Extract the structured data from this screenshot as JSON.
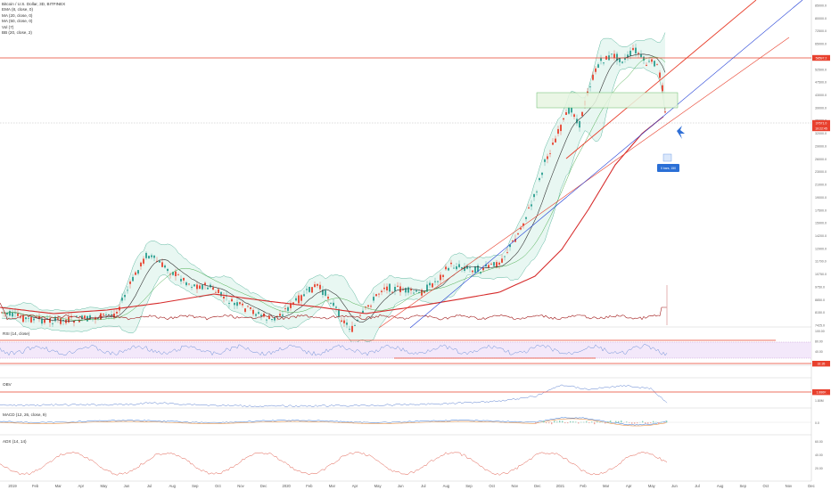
{
  "header": {
    "title": "Bitcoin / U.S. Dollar, 3D, BITFINEX",
    "indicators": [
      "EMA (8, close, 0)",
      "MA (20, close, 0)",
      "MA (50, close, 0)",
      "Vol (7)",
      "BB (20, close, 2)"
    ]
  },
  "chart_data": [
    {
      "type": "line",
      "name": "price",
      "yscale": "log",
      "ylim": [
        6800,
        90000
      ],
      "ticks": [
        "85000.0",
        "80000.0",
        "72500.0",
        "65000.0",
        "57500.0",
        "52500.0",
        "47500.0",
        "43000.0",
        "39000.0",
        "35000.0",
        "32000.0",
        "29000.0",
        "26000.0",
        "23000.0",
        "21000.0",
        "19000.0",
        "17500.0",
        "15900.0",
        "14200.0",
        "12900.0",
        "11700.0",
        "10750.0",
        "9750.0",
        "8850.0",
        "8150.0",
        "7425.0"
      ],
      "price_marks": [
        {
          "label": "58597.2",
          "color": "#e8402d"
        },
        {
          "label": "37671.0",
          "color": "#e8402d"
        },
        {
          "label": "19:22:45",
          "color": "#e8402d"
        }
      ],
      "annotation": "0 bars, 150",
      "colors": {
        "candle_up": "#2a9d8f",
        "candle_down": "#e8402d",
        "trendline": "#e8402d",
        "ma_red": "#d62b2b",
        "ma_black": "#333333",
        "bb": "#5fb8a0",
        "channel": "#1e3cd6",
        "box": "#4caf50"
      }
    },
    {
      "type": "line",
      "name": "RSI (14, close)",
      "ticks": [
        "100.00",
        "80.00",
        "40.00",
        "0.00"
      ],
      "price_marks": [
        {
          "label": "32.35",
          "color": "#e8402d"
        }
      ]
    },
    {
      "type": "line",
      "name": "OBV",
      "ticks": [
        "1.80M"
      ],
      "price_marks": [
        {
          "label": "1.886K",
          "color": "#e8402d"
        }
      ]
    },
    {
      "type": "line",
      "name": "MACD (12, 26, close, 9)",
      "ticks": [
        "0.0"
      ]
    },
    {
      "type": "line",
      "name": "ADX (14, 14)",
      "ticks": [
        "60.00",
        "40.00",
        "20.00"
      ]
    }
  ],
  "time_axis": [
    "2019",
    "Feb",
    "Mar",
    "Apr",
    "May",
    "Jun",
    "Jul",
    "Aug",
    "Sep",
    "Oct",
    "Nov",
    "Dec",
    "2020",
    "Feb",
    "Mar",
    "Apr",
    "May",
    "Jun",
    "Jul",
    "Aug",
    "Sep",
    "Oct",
    "Nov",
    "Dec",
    "2021",
    "Feb",
    "Mar",
    "Apr",
    "May",
    "Jun",
    "Jul",
    "Aug",
    "Sep",
    "Oct",
    "Nov",
    "Dec"
  ]
}
